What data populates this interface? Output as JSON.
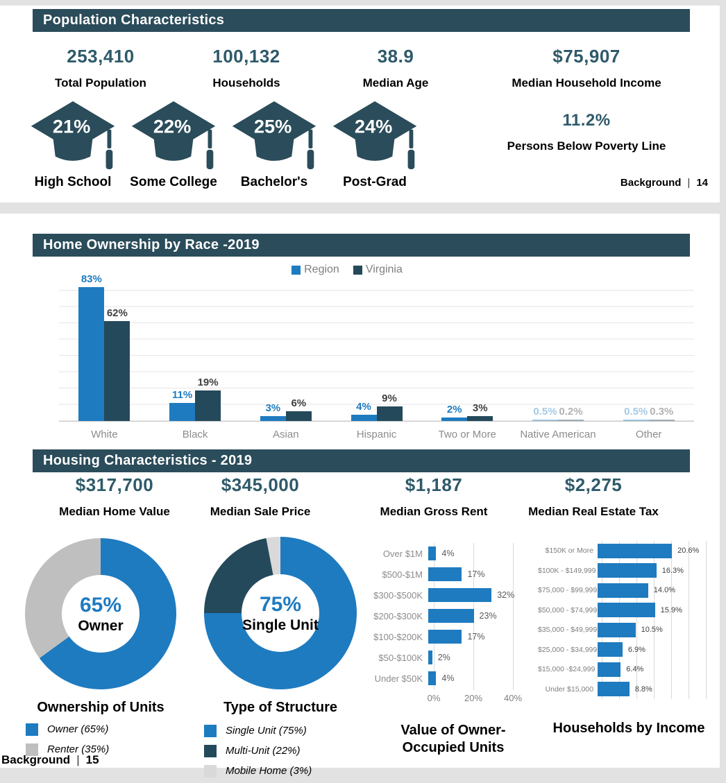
{
  "page1": {
    "header": "Population Characteristics",
    "stats": [
      {
        "value": "253,410",
        "label": "Total Population"
      },
      {
        "value": "100,132",
        "label": "Households"
      },
      {
        "value": "38.9",
        "label": "Median Age"
      },
      {
        "value": "$75,907",
        "label": "Median Household Income"
      }
    ],
    "education": [
      {
        "value": "21%",
        "label": "High School"
      },
      {
        "value": "22%",
        "label": "Some College"
      },
      {
        "value": "25%",
        "label": "Bachelor's"
      },
      {
        "value": "24%",
        "label": "Post-Grad"
      }
    ],
    "poverty": {
      "value": "11.2%",
      "label": "Persons Below Poverty Line"
    },
    "footer": {
      "label": "Background",
      "sep": "|",
      "page": "14"
    }
  },
  "page2": {
    "header_race": "Home Ownership by Race -2019",
    "header_housing": "Housing Characteristics - 2019",
    "stats": [
      {
        "value": "$317,700",
        "label": "Median Home Value"
      },
      {
        "value": "$345,000",
        "label": "Median Sale Price"
      },
      {
        "value": "$1,187",
        "label": "Median Gross Rent"
      },
      {
        "value": "$2,275",
        "label": "Median Real Estate Tax"
      }
    ],
    "footer": {
      "label": "Background",
      "sep": "|",
      "page": "15"
    }
  },
  "colors": {
    "header_teal": "#2B4C5A",
    "stat_teal": "#2E5A6A",
    "blue": "#1E7BC0",
    "dark_teal": "#24495A",
    "renter_gray": "#BFBFBF",
    "mobile_gray": "#D9D9D9",
    "label_gray": "#8C8C8C",
    "value_dark": "#404040"
  },
  "chart_data": [
    {
      "id": "home-ownership-by-race",
      "type": "bar",
      "title": "Home Ownership by Race -2019",
      "categories": [
        "White",
        "Black",
        "Asian",
        "Hispanic",
        "Two or More",
        "Native American",
        "Other"
      ],
      "series": [
        {
          "name": "Region",
          "color": "#1E7BC0",
          "values": [
            83,
            11,
            3,
            4,
            2,
            0.5,
            0.5
          ],
          "labels": [
            "83%",
            "11%",
            "3%",
            "4%",
            "2%",
            "0.5%",
            "0.5%"
          ]
        },
        {
          "name": "Virginia",
          "color": "#24495A",
          "values": [
            62,
            19,
            6,
            9,
            3,
            0.2,
            0.3
          ],
          "labels": [
            "62%",
            "19%",
            "6%",
            "9%",
            "3%",
            "0.2%",
            "0.3%"
          ]
        }
      ],
      "ylim": [
        0,
        90
      ],
      "grid": "horizontal",
      "legend_position": "top-center"
    },
    {
      "id": "ownership-of-units",
      "type": "pie",
      "title": "Ownership of Units",
      "center_value": "65%",
      "center_label": "Owner",
      "slices": [
        {
          "label": "Owner (65%)",
          "value": 65,
          "color": "#1E7BC0"
        },
        {
          "label": "Renter (35%)",
          "value": 35,
          "color": "#BFBFBF"
        }
      ]
    },
    {
      "id": "type-of-structure",
      "type": "pie",
      "title": "Type of Structure",
      "center_value": "75%",
      "center_label": "Single Unit",
      "slices": [
        {
          "label": "Single Unit (75%)",
          "value": 75,
          "color": "#1E7BC0"
        },
        {
          "label": "Multi-Unit (22%)",
          "value": 22,
          "color": "#24495A"
        },
        {
          "label": "Mobile Home (3%)",
          "value": 3,
          "color": "#D9D9D9"
        }
      ]
    },
    {
      "id": "value-of-owner-occupied-units",
      "type": "bar",
      "orientation": "horizontal",
      "title": "Value of Owner-Occupied Units",
      "title_lines": [
        "Value of Owner-",
        "Occupied Units"
      ],
      "categories": [
        "Over $1M",
        "$500-$1M",
        "$300-$500K",
        "$200-$300K",
        "$100-$200K",
        "$50-$100K",
        "Under $50K"
      ],
      "values": [
        4,
        17,
        32,
        23,
        17,
        2,
        4
      ],
      "labels": [
        "4%",
        "17%",
        "32%",
        "23%",
        "17%",
        "2%",
        "4%"
      ],
      "xticks": [
        "0%",
        "20%",
        "40%"
      ],
      "xlim": [
        0,
        40
      ],
      "grid": "vertical"
    },
    {
      "id": "households-by-income",
      "type": "bar",
      "orientation": "horizontal",
      "title": "Households by Income",
      "categories": [
        "$150K or More",
        "$100K - $149,999",
        "$75,000 - $99,999",
        "$50,000 - $74,999",
        "$35,000 - $49,999",
        "$25,000 - $34,999",
        "$15,000 -$24,999",
        "Under $15,000"
      ],
      "values": [
        20.6,
        16.3,
        14.0,
        15.9,
        10.5,
        6.9,
        6.4,
        8.8
      ],
      "labels": [
        "20.6%",
        "16.3%",
        "14.0%",
        "15.9%",
        "10.5%",
        "6.9%",
        "6.4%",
        "8.8%"
      ],
      "xlim": [
        0,
        29
      ],
      "grid": "vertical"
    }
  ]
}
